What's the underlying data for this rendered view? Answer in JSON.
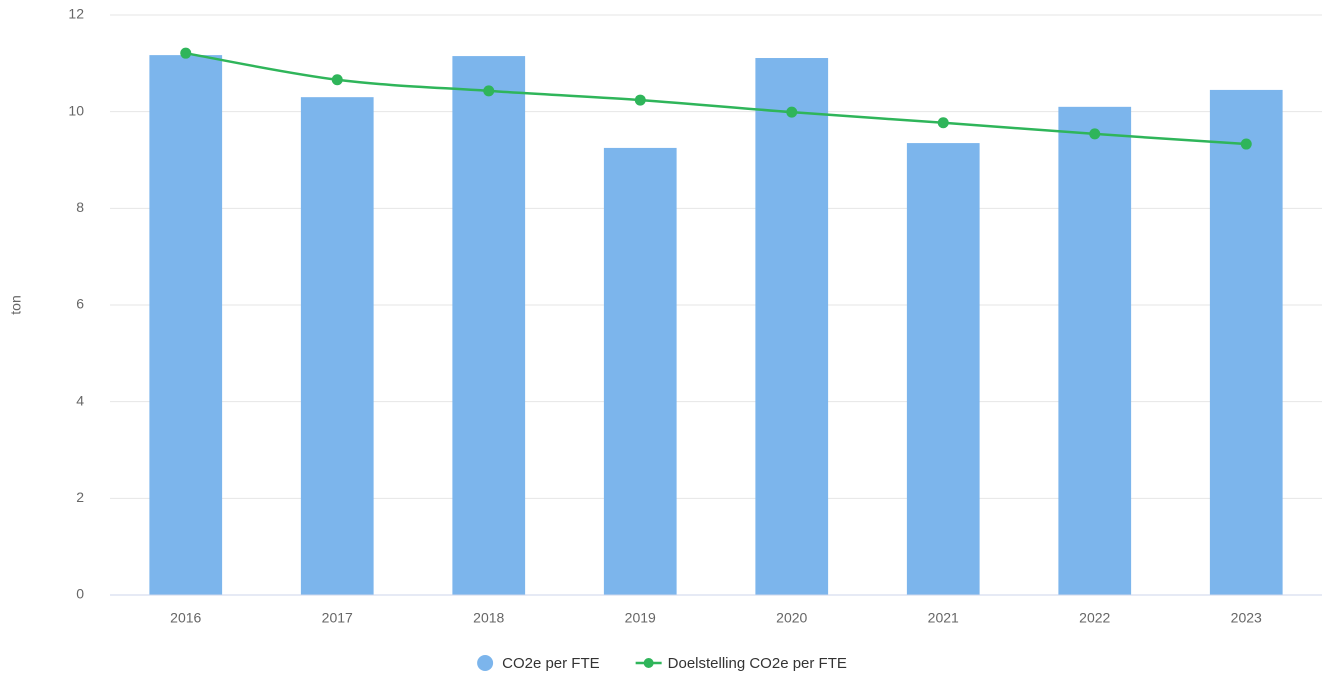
{
  "chart_data": {
    "type": "bar",
    "y_label": "ton",
    "categories": [
      "2016",
      "2017",
      "2018",
      "2019",
      "2020",
      "2021",
      "2022",
      "2023"
    ],
    "series": [
      {
        "name": "CO2e per FTE",
        "type": "bar",
        "color": "#7cb5ec",
        "values": [
          11.17,
          10.3,
          11.15,
          9.25,
          11.11,
          9.35,
          10.1,
          10.45
        ]
      },
      {
        "name": "Doelstelling CO2e per FTE",
        "type": "line",
        "color": "#2fb55a",
        "values": [
          11.21,
          10.66,
          10.43,
          10.24,
          9.99,
          9.77,
          9.54,
          9.33
        ]
      }
    ],
    "ylim": [
      0,
      12
    ],
    "yticks": [
      0,
      2,
      4,
      6,
      8,
      10,
      12
    ],
    "grid": true,
    "legend": "bottom"
  }
}
